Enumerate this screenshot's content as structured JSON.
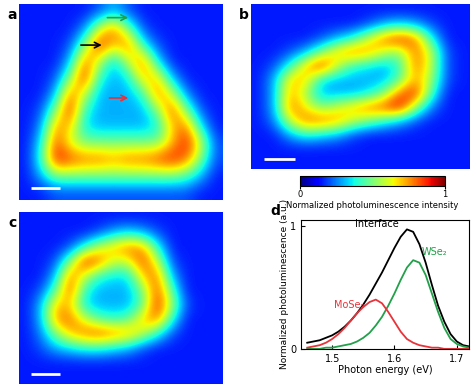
{
  "chart_data": [
    {
      "type": "heatmap",
      "title": "a",
      "cells": [
        [
          0.15,
          0.15,
          0.15,
          0.15,
          0.15,
          0.2,
          0.3,
          0.2,
          0.15,
          0.15,
          0.15,
          0.15,
          0.15,
          0.15
        ],
        [
          0.15,
          0.15,
          0.15,
          0.15,
          0.25,
          0.6,
          0.8,
          0.5,
          0.2,
          0.15,
          0.15,
          0.15,
          0.15,
          0.15
        ],
        [
          0.15,
          0.15,
          0.15,
          0.2,
          0.5,
          0.9,
          0.7,
          0.8,
          0.4,
          0.2,
          0.15,
          0.15,
          0.15,
          0.15
        ],
        [
          0.15,
          0.15,
          0.15,
          0.3,
          0.8,
          0.6,
          0.3,
          0.6,
          0.8,
          0.35,
          0.15,
          0.15,
          0.15,
          0.15
        ],
        [
          0.15,
          0.15,
          0.2,
          0.5,
          0.9,
          0.4,
          0.3,
          0.35,
          0.7,
          0.7,
          0.3,
          0.15,
          0.15,
          0.15
        ],
        [
          0.15,
          0.15,
          0.3,
          0.8,
          0.6,
          0.3,
          0.3,
          0.3,
          0.4,
          0.8,
          0.6,
          0.25,
          0.15,
          0.15
        ],
        [
          0.15,
          0.2,
          0.5,
          0.9,
          0.4,
          0.3,
          0.3,
          0.3,
          0.3,
          0.5,
          0.85,
          0.5,
          0.2,
          0.15
        ],
        [
          0.15,
          0.25,
          0.75,
          0.7,
          0.35,
          0.3,
          0.3,
          0.3,
          0.3,
          0.35,
          0.7,
          0.8,
          0.35,
          0.15
        ],
        [
          0.15,
          0.35,
          0.85,
          0.6,
          0.5,
          0.5,
          0.5,
          0.5,
          0.5,
          0.5,
          0.7,
          0.9,
          0.6,
          0.2
        ],
        [
          0.15,
          0.4,
          0.9,
          0.85,
          0.8,
          0.8,
          0.75,
          0.8,
          0.8,
          0.85,
          0.9,
          0.8,
          0.5,
          0.2
        ],
        [
          0.15,
          0.3,
          0.5,
          0.5,
          0.5,
          0.5,
          0.5,
          0.5,
          0.5,
          0.5,
          0.5,
          0.45,
          0.3,
          0.15
        ],
        [
          0.15,
          0.15,
          0.2,
          0.2,
          0.2,
          0.2,
          0.2,
          0.2,
          0.2,
          0.2,
          0.2,
          0.2,
          0.15,
          0.15
        ]
      ]
    },
    {
      "type": "heatmap",
      "title": "b",
      "cells": [
        [
          0.15,
          0.15,
          0.15,
          0.15,
          0.15,
          0.15,
          0.15,
          0.15,
          0.15,
          0.15,
          0.15,
          0.15,
          0.15,
          0.15
        ],
        [
          0.15,
          0.15,
          0.15,
          0.15,
          0.15,
          0.15,
          0.15,
          0.2,
          0.3,
          0.35,
          0.3,
          0.2,
          0.15,
          0.15
        ],
        [
          0.15,
          0.15,
          0.15,
          0.15,
          0.2,
          0.3,
          0.4,
          0.6,
          0.8,
          0.9,
          0.8,
          0.4,
          0.15,
          0.15
        ],
        [
          0.15,
          0.15,
          0.2,
          0.3,
          0.5,
          0.7,
          0.8,
          0.75,
          0.6,
          0.5,
          0.8,
          0.6,
          0.2,
          0.15
        ],
        [
          0.15,
          0.2,
          0.4,
          0.7,
          0.9,
          0.6,
          0.4,
          0.35,
          0.3,
          0.4,
          0.8,
          0.6,
          0.2,
          0.15
        ],
        [
          0.15,
          0.3,
          0.7,
          0.7,
          0.35,
          0.3,
          0.3,
          0.3,
          0.3,
          0.45,
          0.75,
          0.55,
          0.2,
          0.15
        ],
        [
          0.15,
          0.3,
          0.75,
          0.55,
          0.3,
          0.3,
          0.3,
          0.35,
          0.5,
          0.8,
          0.9,
          0.45,
          0.15,
          0.15
        ],
        [
          0.15,
          0.3,
          0.8,
          0.65,
          0.5,
          0.6,
          0.7,
          0.8,
          0.85,
          0.95,
          0.55,
          0.25,
          0.15,
          0.15
        ],
        [
          0.15,
          0.25,
          0.6,
          0.8,
          0.8,
          0.75,
          0.6,
          0.5,
          0.4,
          0.3,
          0.2,
          0.15,
          0.15,
          0.15
        ],
        [
          0.15,
          0.15,
          0.3,
          0.4,
          0.35,
          0.3,
          0.2,
          0.15,
          0.15,
          0.15,
          0.15,
          0.15,
          0.15,
          0.15
        ],
        [
          0.15,
          0.15,
          0.15,
          0.15,
          0.15,
          0.15,
          0.15,
          0.15,
          0.15,
          0.15,
          0.15,
          0.15,
          0.15,
          0.15
        ],
        [
          0.15,
          0.15,
          0.15,
          0.15,
          0.15,
          0.15,
          0.15,
          0.15,
          0.15,
          0.15,
          0.15,
          0.15,
          0.15,
          0.15
        ]
      ]
    },
    {
      "type": "heatmap",
      "title": "c",
      "cells": [
        [
          0.15,
          0.15,
          0.15,
          0.15,
          0.15,
          0.15,
          0.15,
          0.15,
          0.15,
          0.15,
          0.15,
          0.15,
          0.15,
          0.15
        ],
        [
          0.15,
          0.15,
          0.15,
          0.15,
          0.15,
          0.2,
          0.3,
          0.35,
          0.3,
          0.2,
          0.15,
          0.15,
          0.15,
          0.15
        ],
        [
          0.15,
          0.15,
          0.15,
          0.2,
          0.4,
          0.6,
          0.7,
          0.8,
          0.75,
          0.4,
          0.15,
          0.15,
          0.15,
          0.15
        ],
        [
          0.15,
          0.15,
          0.2,
          0.5,
          0.9,
          0.8,
          0.6,
          0.6,
          0.85,
          0.6,
          0.2,
          0.15,
          0.15,
          0.15
        ],
        [
          0.15,
          0.15,
          0.3,
          0.8,
          0.6,
          0.4,
          0.35,
          0.35,
          0.7,
          0.8,
          0.3,
          0.15,
          0.15,
          0.15
        ],
        [
          0.15,
          0.2,
          0.45,
          0.85,
          0.4,
          0.3,
          0.3,
          0.3,
          0.5,
          0.85,
          0.45,
          0.15,
          0.15,
          0.15
        ],
        [
          0.15,
          0.3,
          0.7,
          0.7,
          0.35,
          0.3,
          0.3,
          0.3,
          0.45,
          0.9,
          0.55,
          0.2,
          0.15,
          0.15
        ],
        [
          0.15,
          0.3,
          0.75,
          0.8,
          0.6,
          0.45,
          0.4,
          0.45,
          0.7,
          0.8,
          0.4,
          0.15,
          0.15,
          0.15
        ],
        [
          0.15,
          0.25,
          0.5,
          0.7,
          0.8,
          0.85,
          0.8,
          0.75,
          0.6,
          0.4,
          0.2,
          0.15,
          0.15,
          0.15
        ],
        [
          0.15,
          0.2,
          0.3,
          0.35,
          0.4,
          0.4,
          0.35,
          0.3,
          0.2,
          0.15,
          0.15,
          0.15,
          0.15,
          0.15
        ],
        [
          0.15,
          0.15,
          0.15,
          0.15,
          0.15,
          0.15,
          0.15,
          0.15,
          0.15,
          0.15,
          0.15,
          0.15,
          0.15,
          0.15
        ],
        [
          0.15,
          0.15,
          0.15,
          0.15,
          0.15,
          0.15,
          0.15,
          0.15,
          0.15,
          0.15,
          0.15,
          0.15,
          0.15,
          0.15
        ]
      ]
    },
    {
      "type": "line",
      "title": "d",
      "x_label": "Photon energy (eV)",
      "y_label": "Normalized photoluminescence (a.u.)",
      "x": [
        1.46,
        1.47,
        1.48,
        1.49,
        1.5,
        1.51,
        1.52,
        1.53,
        1.54,
        1.55,
        1.56,
        1.57,
        1.58,
        1.59,
        1.6,
        1.61,
        1.62,
        1.63,
        1.64,
        1.65,
        1.66,
        1.67,
        1.68,
        1.69,
        1.7,
        1.71,
        1.72
      ],
      "xlim": [
        1.45,
        1.72
      ],
      "xticks": [
        1.5,
        1.6,
        1.7
      ],
      "ylim": [
        0,
        1.05
      ],
      "yticks": [
        0,
        1
      ],
      "series": [
        {
          "name": "Interface",
          "color": "#000000",
          "values": [
            0.05,
            0.06,
            0.07,
            0.09,
            0.11,
            0.14,
            0.18,
            0.23,
            0.29,
            0.36,
            0.44,
            0.53,
            0.62,
            0.72,
            0.82,
            0.91,
            0.97,
            0.95,
            0.85,
            0.7,
            0.52,
            0.35,
            0.22,
            0.12,
            0.06,
            0.03,
            0.02
          ]
        },
        {
          "name": "WSe₂",
          "color": "#22a04a",
          "values": [
            0,
            0,
            0,
            0.01,
            0.01,
            0.02,
            0.03,
            0.04,
            0.06,
            0.09,
            0.13,
            0.19,
            0.26,
            0.35,
            0.45,
            0.56,
            0.66,
            0.72,
            0.7,
            0.6,
            0.45,
            0.3,
            0.17,
            0.08,
            0.04,
            0.02,
            0.01
          ]
        },
        {
          "name": "MoSe₂",
          "color": "#e8333a",
          "values": [
            0.01,
            0.02,
            0.03,
            0.05,
            0.08,
            0.12,
            0.17,
            0.23,
            0.29,
            0.34,
            0.38,
            0.4,
            0.37,
            0.3,
            0.22,
            0.14,
            0.08,
            0.05,
            0.03,
            0.02,
            0.01,
            0.01,
            0,
            0,
            0,
            0,
            0
          ]
        }
      ]
    }
  ],
  "colorbar": {
    "label": "Normalized photoluminescence intensity",
    "range": [
      0,
      1
    ],
    "ticks": [
      0,
      1
    ]
  }
}
